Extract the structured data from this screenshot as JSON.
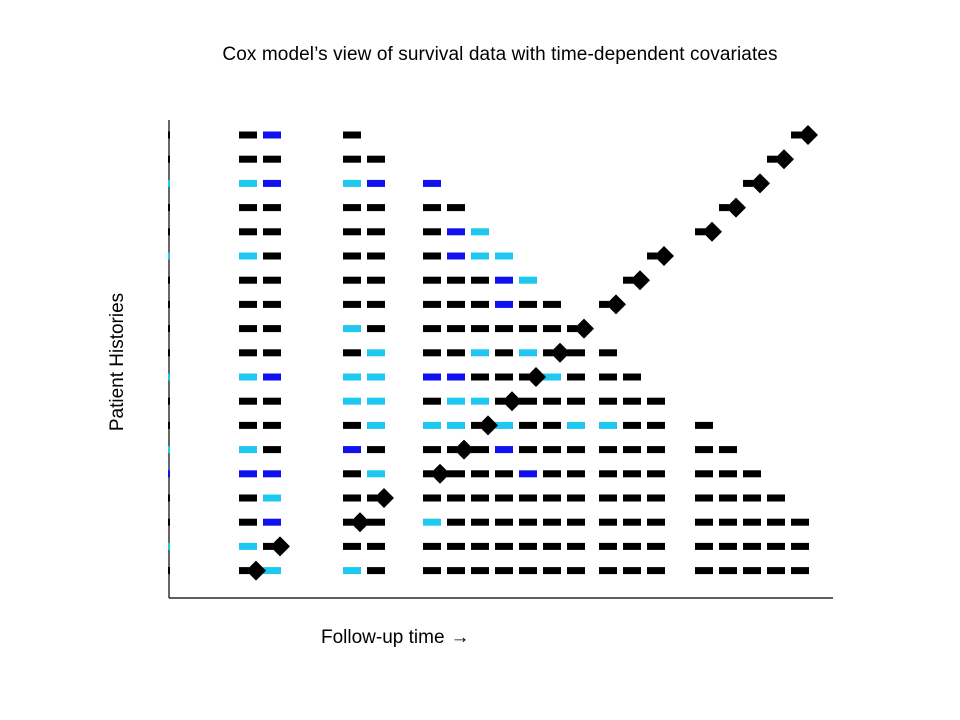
{
  "title": "Cox model’s view of survival data with time-dependent covariates",
  "ylabel": "Patient Histories",
  "xlabel": "Follow-up time",
  "xlabel_arrow": "→",
  "colors": {
    "off": "#000000",
    "light": "#1ec8f0",
    "dark": "#1010f0",
    "event": "#000000",
    "axis": "#000000"
  },
  "num_patients": 19,
  "event_times": [
    1,
    2,
    3,
    4,
    5,
    6,
    7,
    8,
    9,
    10,
    11,
    12,
    13,
    14,
    15,
    16,
    17,
    18,
    19
  ],
  "event_patients": [
    1,
    2,
    3,
    4,
    5,
    6,
    7,
    8,
    9,
    10,
    11,
    12,
    13,
    14,
    15,
    16,
    17,
    18,
    19
  ],
  "risk_sets": [
    {
      "time": 1,
      "states": [
        "K",
        "L",
        "K",
        "K",
        "D",
        "L",
        "K",
        "K",
        "L",
        "K",
        "K",
        "K",
        "K",
        "L",
        "K",
        "K",
        "L",
        "K",
        "K"
      ]
    },
    {
      "time": 2,
      "states": [
        "L",
        "K",
        "D",
        "L",
        "D",
        "K",
        "K",
        "K",
        "D",
        "K",
        "K",
        "K",
        "K",
        "K",
        "K",
        "K",
        "D",
        "K",
        "D"
      ]
    },
    {
      "time": 3,
      "states": [
        "L",
        "K",
        "K",
        "K",
        "K",
        "D",
        "K",
        "L",
        "L",
        "K",
        "L",
        "K",
        "K",
        "K",
        "K",
        "K",
        "L",
        "K",
        "K"
      ]
    },
    {
      "time": 4,
      "states": [
        "K",
        "K",
        "K",
        "K",
        "L",
        "K",
        "L",
        "L",
        "L",
        "L",
        "K",
        "K",
        "K",
        "K",
        "K",
        "K",
        "D",
        "K"
      ]
    },
    {
      "time": 5,
      "states": [
        "K",
        "K",
        "L",
        "K",
        "K",
        "K",
        "L",
        "K",
        "D",
        "K",
        "K",
        "K",
        "K",
        "K",
        "K",
        "K",
        "D"
      ]
    },
    {
      "time": 6,
      "states": [
        "K",
        "K",
        "K",
        "K",
        "K",
        "K",
        "L",
        "L",
        "D",
        "K",
        "K",
        "K",
        "K",
        "D",
        "D",
        "K"
      ]
    },
    {
      "time": 7,
      "states": [
        "K",
        "K",
        "K",
        "K",
        "K",
        "K",
        "K",
        "L",
        "K",
        "L",
        "K",
        "K",
        "K",
        "L",
        "L"
      ]
    },
    {
      "time": 8,
      "states": [
        "K",
        "K",
        "K",
        "K",
        "K",
        "D",
        "L",
        "K",
        "K",
        "K",
        "K",
        "D",
        "D",
        "L"
      ]
    },
    {
      "time": 9,
      "states": [
        "K",
        "K",
        "K",
        "K",
        "D",
        "K",
        "K",
        "K",
        "K",
        "L",
        "K",
        "K",
        "L"
      ]
    },
    {
      "time": 10,
      "states": [
        "K",
        "K",
        "K",
        "K",
        "K",
        "K",
        "K",
        "K",
        "L",
        "K",
        "K",
        "K"
      ]
    },
    {
      "time": 11,
      "states": [
        "K",
        "K",
        "K",
        "K",
        "K",
        "K",
        "L",
        "K",
        "K",
        "K",
        "K"
      ]
    },
    {
      "time": 12,
      "states": [
        "K",
        "K",
        "K",
        "K",
        "K",
        "K",
        "L",
        "K",
        "K",
        "K"
      ]
    },
    {
      "time": 13,
      "states": [
        "K",
        "K",
        "K",
        "K",
        "K",
        "K",
        "K",
        "K",
        "K"
      ]
    },
    {
      "time": 14,
      "states": [
        "K",
        "K",
        "K",
        "K",
        "K",
        "K",
        "K",
        "K"
      ]
    },
    {
      "time": 15,
      "states": [
        "K",
        "K",
        "K",
        "K",
        "K",
        "K",
        "K"
      ]
    },
    {
      "time": 16,
      "states": [
        "K",
        "K",
        "K",
        "K",
        "K",
        "K"
      ]
    },
    {
      "time": 17,
      "states": [
        "K",
        "K",
        "K",
        "K",
        "K"
      ]
    },
    {
      "time": 18,
      "states": [
        "K",
        "K",
        "K",
        "K"
      ]
    },
    {
      "time": 19,
      "states": [
        "K",
        "K",
        "K"
      ]
    }
  ]
}
